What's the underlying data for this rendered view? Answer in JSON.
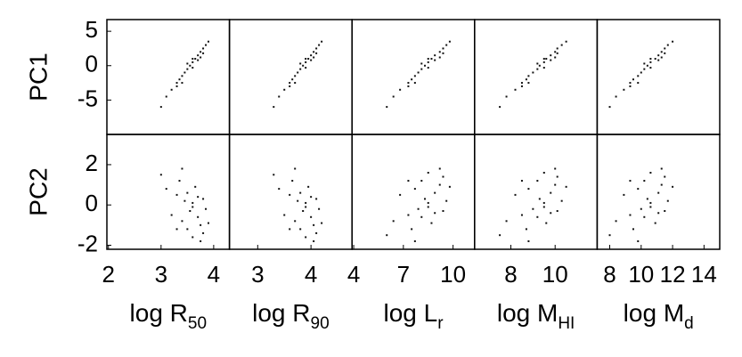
{
  "chart_data": [
    {
      "type": "scatter",
      "ylabel": "PC1",
      "x": [
        3.0,
        3.1,
        3.2,
        3.3,
        3.35,
        3.4,
        3.45,
        3.5,
        3.5,
        3.55,
        3.6,
        3.6,
        3.65,
        3.7,
        3.7,
        3.75,
        3.8,
        3.8,
        3.85,
        3.9,
        3.4,
        3.6,
        3.75,
        3.3
      ],
      "values": [
        -6,
        -4.5,
        -3.5,
        -2.5,
        -2,
        -1.5,
        -1,
        -0.5,
        0.3,
        0,
        0.5,
        -0.3,
        1,
        1.5,
        0.8,
        2,
        2.5,
        1.8,
        3,
        3.5,
        -2.5,
        1,
        1.2,
        -3
      ],
      "xlim": [
        1.97,
        4.3
      ],
      "ylim": [
        -10,
        6.7
      ],
      "yticks": [
        5,
        0,
        -5
      ],
      "color": "#111111"
    },
    {
      "type": "scatter",
      "x": [
        3.3,
        3.4,
        3.5,
        3.6,
        3.65,
        3.7,
        3.75,
        3.8,
        3.8,
        3.85,
        3.9,
        3.9,
        3.95,
        4.0,
        4.0,
        4.05,
        4.1,
        4.1,
        4.15,
        4.2,
        3.7,
        3.9,
        4.05,
        3.6
      ],
      "values": [
        -6,
        -4.5,
        -3.5,
        -2.5,
        -2,
        -1.5,
        -1,
        -0.5,
        0.3,
        0,
        0.5,
        -0.3,
        1,
        1.5,
        0.8,
        2,
        2.5,
        1.8,
        3,
        3.5,
        -2.5,
        1,
        1.2,
        -3
      ],
      "xlim": [
        2.47,
        4.77
      ],
      "ylim": [
        -10,
        6.7
      ],
      "color": "#111111"
    },
    {
      "type": "scatter",
      "x": [
        6,
        6.4,
        6.8,
        7.3,
        7.5,
        7.7,
        7.9,
        8.1,
        8.1,
        8.3,
        8.5,
        8.5,
        8.7,
        8.9,
        8.9,
        9.2,
        9.4,
        9.4,
        9.6,
        9.8,
        7.7,
        8.5,
        9.2,
        7.3
      ],
      "values": [
        -6,
        -4.5,
        -3.5,
        -2.5,
        -2,
        -1.5,
        -1,
        -0.5,
        0.3,
        0,
        0.5,
        -0.3,
        1,
        1.5,
        0.8,
        2,
        2.5,
        1.8,
        3,
        3.5,
        -2.5,
        1,
        1.2,
        -3
      ],
      "xlim": [
        3.9,
        11.3
      ],
      "ylim": [
        -10,
        6.7
      ],
      "color": "#111111"
    },
    {
      "type": "scatter",
      "x": [
        7.5,
        7.8,
        8.2,
        8.5,
        8.7,
        8.8,
        9,
        9.2,
        9.2,
        9.3,
        9.5,
        9.5,
        9.6,
        9.8,
        9.8,
        10,
        10.1,
        10.1,
        10.3,
        10.5,
        8.8,
        9.5,
        10,
        8.5
      ],
      "values": [
        -6,
        -4.5,
        -3.5,
        -2.5,
        -2,
        -1.5,
        -1,
        -0.5,
        0.3,
        0,
        0.5,
        -0.3,
        1,
        1.5,
        0.8,
        2,
        2.5,
        1.8,
        3,
        3.5,
        -2.5,
        1,
        1.2,
        -3
      ],
      "xlim": [
        6.36,
        11.9
      ],
      "ylim": [
        -10,
        6.7
      ],
      "color": "#111111"
    },
    {
      "type": "scatter",
      "x": [
        8,
        8.4,
        8.9,
        9.3,
        9.5,
        9.8,
        10,
        10.2,
        10.2,
        10.4,
        10.6,
        10.6,
        10.9,
        11.1,
        11.1,
        11.3,
        11.5,
        11.5,
        11.7,
        12,
        9.8,
        10.6,
        11.3,
        9.3
      ],
      "values": [
        -6,
        -4.5,
        -3.5,
        -2.5,
        -2,
        -1.5,
        -1,
        -0.5,
        0.3,
        0,
        0.5,
        -0.3,
        1,
        1.5,
        0.8,
        2,
        2.5,
        1.8,
        3,
        3.5,
        -2.5,
        1,
        1.2,
        -3
      ],
      "xlim": [
        7.2,
        15
      ],
      "ylim": [
        -10,
        6.7
      ],
      "color": "#111111"
    },
    {
      "type": "scatter",
      "ylabel": "PC2",
      "xlabel": {
        "text": "log R",
        "sub": "50"
      },
      "x": [
        3.0,
        3.1,
        3.2,
        3.3,
        3.35,
        3.4,
        3.45,
        3.5,
        3.5,
        3.55,
        3.6,
        3.6,
        3.65,
        3.7,
        3.7,
        3.75,
        3.8,
        3.8,
        3.85,
        3.9,
        3.4,
        3.6,
        3.75,
        3.3
      ],
      "values": [
        1.5,
        0.8,
        -0.5,
        0.5,
        1.2,
        -0.8,
        0.2,
        -1.2,
        0.6,
        -0.3,
        0.1,
        -1.6,
        0.9,
        -0.6,
        0.4,
        -1,
        0.3,
        -1.4,
        -0.2,
        -0.9,
        1.8,
        -0.1,
        -1.8,
        -1.2
      ],
      "xlim": [
        1.97,
        4.3
      ],
      "ylim": [
        -2.2,
        3.5
      ],
      "xticks": [
        2,
        3,
        4
      ],
      "yticks": [
        2,
        0,
        -2
      ],
      "color": "#111111"
    },
    {
      "type": "scatter",
      "xlabel": {
        "text": "log R",
        "sub": "90"
      },
      "x": [
        3.3,
        3.4,
        3.5,
        3.6,
        3.65,
        3.7,
        3.75,
        3.8,
        3.8,
        3.85,
        3.9,
        3.9,
        3.95,
        4.0,
        4.0,
        4.05,
        4.1,
        4.1,
        4.15,
        4.2,
        3.7,
        3.9,
        4.05,
        3.6
      ],
      "values": [
        1.5,
        0.8,
        -0.5,
        0.5,
        1.2,
        -0.8,
        0.2,
        -1.2,
        0.6,
        -0.3,
        0.1,
        -1.6,
        0.9,
        -0.6,
        0.4,
        -1,
        0.3,
        -1.4,
        -0.2,
        -0.9,
        1.8,
        -0.1,
        -1.8,
        -1.2
      ],
      "xlim": [
        2.47,
        4.77
      ],
      "ylim": [
        -2.2,
        3.5
      ],
      "xticks": [
        3,
        4
      ],
      "color": "#111111"
    },
    {
      "type": "scatter",
      "xlabel": {
        "text": "log L",
        "sub": "r"
      },
      "x": [
        6,
        6.4,
        6.8,
        7.3,
        7.5,
        7.7,
        7.9,
        8.1,
        8.1,
        8.3,
        8.5,
        8.5,
        8.7,
        8.9,
        8.9,
        9.2,
        9.4,
        9.4,
        9.6,
        9.8,
        7.7,
        8.5,
        9.2,
        7.3
      ],
      "values": [
        -1.5,
        -0.8,
        0.5,
        -0.5,
        -1.2,
        0.8,
        -0.2,
        1.2,
        -0.6,
        0.3,
        -0.1,
        1.6,
        -0.9,
        0.6,
        -0.4,
        1,
        -0.3,
        1.4,
        0.2,
        0.9,
        -1.8,
        0.1,
        1.8,
        1.2
      ],
      "xlim": [
        3.9,
        11.3
      ],
      "ylim": [
        -2.2,
        3.5
      ],
      "xticks": [
        4,
        7,
        10
      ],
      "color": "#111111"
    },
    {
      "type": "scatter",
      "xlabel": {
        "text": "log M",
        "sub": "HI"
      },
      "x": [
        7.5,
        7.8,
        8.2,
        8.5,
        8.7,
        8.8,
        9,
        9.2,
        9.2,
        9.3,
        9.5,
        9.5,
        9.6,
        9.8,
        9.8,
        10,
        10.1,
        10.1,
        10.3,
        10.5,
        8.8,
        9.5,
        10,
        8.5
      ],
      "values": [
        -1.5,
        -0.8,
        0.5,
        -0.5,
        -1.2,
        0.8,
        -0.2,
        1.2,
        -0.6,
        0.3,
        -0.1,
        1.6,
        -0.9,
        0.6,
        -0.4,
        1,
        -0.3,
        1.4,
        0.2,
        0.9,
        -1.8,
        0.1,
        1.8,
        1.2
      ],
      "xlim": [
        6.36,
        11.9
      ],
      "ylim": [
        -2.2,
        3.5
      ],
      "xticks": [
        8,
        10
      ],
      "color": "#111111"
    },
    {
      "type": "scatter",
      "xlabel": {
        "text": "log M",
        "sub": "d"
      },
      "x": [
        8,
        8.4,
        8.9,
        9.3,
        9.5,
        9.8,
        10,
        10.2,
        10.2,
        10.4,
        10.6,
        10.6,
        10.9,
        11.1,
        11.1,
        11.3,
        11.5,
        11.5,
        11.7,
        12,
        9.8,
        10.6,
        11.3,
        9.3
      ],
      "values": [
        -1.5,
        -0.8,
        0.5,
        -0.5,
        -1.2,
        0.8,
        -0.2,
        1.2,
        -0.6,
        0.3,
        -0.1,
        1.6,
        -0.9,
        0.6,
        -0.4,
        1,
        -0.3,
        1.4,
        0.2,
        0.9,
        -1.8,
        0.1,
        1.8,
        1.2
      ],
      "xlim": [
        7.2,
        15
      ],
      "ylim": [
        -2.2,
        3.5
      ],
      "xticks": [
        8,
        10,
        12,
        14
      ],
      "color": "#111111"
    }
  ]
}
